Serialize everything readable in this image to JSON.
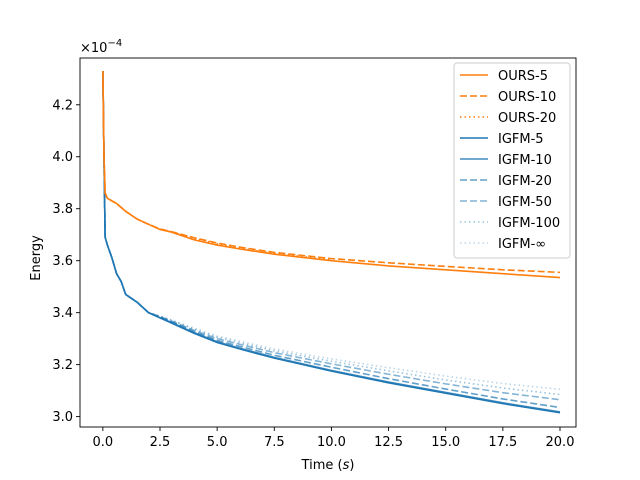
{
  "chart_data": {
    "type": "line",
    "title": "",
    "xlabel": "Time (s)",
    "ylabel": "Energy",
    "y_multiplier": "×10−4",
    "xlim": [
      -1,
      20.7
    ],
    "ylim": [
      2.96,
      4.38
    ],
    "xticks": [
      "0.0",
      "2.5",
      "5.0",
      "7.5",
      "10.0",
      "12.5",
      "15.0",
      "17.5",
      "20.0"
    ],
    "xtick_values": [
      0,
      2.5,
      5,
      7.5,
      10,
      12.5,
      15,
      17.5,
      20
    ],
    "yticks": [
      "3.0",
      "3.2",
      "3.4",
      "3.6",
      "3.8",
      "4.0",
      "4.2"
    ],
    "ytick_values": [
      3.0,
      3.2,
      3.4,
      3.6,
      3.8,
      4.0,
      4.2
    ],
    "legend_position": "top-right",
    "grid": false,
    "series": [
      {
        "name": "OURS-5",
        "color": "#ff7f0e",
        "style": "solid",
        "opacity": 1,
        "x": [
          0,
          0.05,
          0.1,
          0.2,
          0.4,
          0.6,
          1.0,
          1.5,
          2.0,
          2.5,
          3.0,
          4.0,
          5.0,
          6.0,
          7.5,
          10,
          12.5,
          15,
          17.5,
          20
        ],
        "y": [
          4.33,
          4.0,
          3.86,
          3.84,
          3.83,
          3.82,
          3.79,
          3.76,
          3.74,
          3.72,
          3.71,
          3.68,
          3.66,
          3.645,
          3.625,
          3.6,
          3.58,
          3.565,
          3.55,
          3.535
        ]
      },
      {
        "name": "OURS-10",
        "color": "#ff7f0e",
        "style": "dashed",
        "opacity": 1,
        "x": [
          0,
          0.05,
          0.1,
          0.2,
          0.4,
          0.6,
          1.0,
          1.5,
          2.0,
          2.5,
          3.0,
          4.0,
          5.0,
          6.0,
          7.5,
          10,
          12.5,
          15,
          17.5,
          20
        ],
        "y": [
          4.33,
          4.0,
          3.86,
          3.84,
          3.83,
          3.82,
          3.79,
          3.76,
          3.74,
          3.722,
          3.712,
          3.688,
          3.668,
          3.652,
          3.632,
          3.608,
          3.592,
          3.578,
          3.565,
          3.555
        ]
      },
      {
        "name": "OURS-20",
        "color": "#ff7f0e",
        "style": "dotted",
        "opacity": 1,
        "x": [
          0,
          0.05,
          0.1,
          0.2,
          0.4,
          0.6,
          1.0,
          1.5,
          2.0,
          2.5,
          3.0,
          4.0,
          5.0,
          6.0,
          7.5,
          10
        ],
        "y": [
          4.33,
          4.0,
          3.86,
          3.84,
          3.83,
          3.82,
          3.79,
          3.76,
          3.74,
          3.721,
          3.711,
          3.686,
          3.665,
          3.648,
          3.628,
          3.603
        ]
      },
      {
        "name": "IGFM-5",
        "color": "#1f77b4",
        "style": "solid",
        "opacity": 1,
        "x": [
          0,
          0.05,
          0.1,
          0.2,
          0.4,
          0.6,
          0.8,
          1.0,
          1.5,
          2.0,
          2.5,
          3.0,
          4.0,
          5.0,
          6.0,
          7.5,
          10,
          12.5,
          15,
          17.5,
          20
        ],
        "y": [
          4.33,
          4.0,
          3.69,
          3.66,
          3.61,
          3.55,
          3.52,
          3.47,
          3.44,
          3.4,
          3.38,
          3.36,
          3.32,
          3.285,
          3.26,
          3.225,
          3.175,
          3.13,
          3.09,
          3.05,
          3.015
        ]
      },
      {
        "name": "IGFM-10",
        "color": "#1f77b4",
        "style": "solid",
        "opacity": 0.85,
        "x": [
          0,
          0.05,
          0.1,
          0.2,
          0.4,
          0.6,
          0.8,
          1.0,
          1.5,
          2.0,
          2.5,
          3.0,
          4.0,
          5.0,
          6.0,
          7.5,
          10,
          12.5,
          15,
          17.5,
          20
        ],
        "y": [
          4.33,
          4.0,
          3.69,
          3.66,
          3.61,
          3.55,
          3.52,
          3.47,
          3.44,
          3.4,
          3.381,
          3.362,
          3.323,
          3.288,
          3.263,
          3.228,
          3.178,
          3.133,
          3.093,
          3.053,
          3.018
        ]
      },
      {
        "name": "IGFM-20",
        "color": "#1f77b4",
        "style": "dashed",
        "opacity": 0.7,
        "x": [
          0,
          0.05,
          0.1,
          0.2,
          0.4,
          0.6,
          0.8,
          1.0,
          1.5,
          2.0,
          2.5,
          3.0,
          4.0,
          5.0,
          6.0,
          7.5,
          10,
          12.5,
          15,
          17.5,
          20
        ],
        "y": [
          4.33,
          4.0,
          3.69,
          3.66,
          3.61,
          3.55,
          3.52,
          3.47,
          3.44,
          3.4,
          3.383,
          3.365,
          3.327,
          3.293,
          3.27,
          3.236,
          3.19,
          3.146,
          3.106,
          3.068,
          3.035
        ]
      },
      {
        "name": "IGFM-50",
        "color": "#1f77b4",
        "style": "dashed",
        "opacity": 0.55,
        "x": [
          0,
          0.05,
          0.1,
          0.2,
          0.4,
          0.6,
          0.8,
          1.0,
          1.5,
          2.0,
          2.5,
          3.0,
          4.0,
          5.0,
          6.0,
          7.5,
          10,
          12.5,
          15,
          17.5,
          20
        ],
        "y": [
          4.33,
          4.0,
          3.69,
          3.66,
          3.61,
          3.55,
          3.52,
          3.47,
          3.44,
          3.4,
          3.385,
          3.368,
          3.332,
          3.3,
          3.278,
          3.246,
          3.203,
          3.163,
          3.126,
          3.092,
          3.065
        ]
      },
      {
        "name": "IGFM-100",
        "color": "#1f77b4",
        "style": "dotted",
        "opacity": 0.45,
        "x": [
          0,
          0.05,
          0.1,
          0.2,
          0.4,
          0.6,
          0.8,
          1.0,
          1.5,
          2.0,
          2.5,
          3.0,
          4.0,
          5.0,
          6.0,
          7.5,
          10,
          12.5,
          15,
          17.5,
          20
        ],
        "y": [
          4.33,
          4.0,
          3.69,
          3.66,
          3.61,
          3.55,
          3.52,
          3.47,
          3.44,
          3.4,
          3.386,
          3.37,
          3.336,
          3.305,
          3.284,
          3.253,
          3.213,
          3.176,
          3.141,
          3.11,
          3.085
        ]
      },
      {
        "name": "IGFM-∞",
        "color": "#1f77b4",
        "style": "dotted",
        "opacity": 0.3,
        "x": [
          0,
          0.05,
          0.1,
          0.2,
          0.4,
          0.6,
          0.8,
          1.0,
          1.5,
          2.0,
          2.5,
          3.0,
          4.0,
          5.0,
          6.0,
          7.5,
          10,
          12.5,
          15,
          17.5,
          20
        ],
        "y": [
          4.33,
          4.0,
          3.69,
          3.66,
          3.61,
          3.55,
          3.52,
          3.47,
          3.44,
          3.4,
          3.387,
          3.372,
          3.34,
          3.31,
          3.29,
          3.26,
          3.222,
          3.188,
          3.156,
          3.127,
          3.105
        ]
      }
    ]
  }
}
